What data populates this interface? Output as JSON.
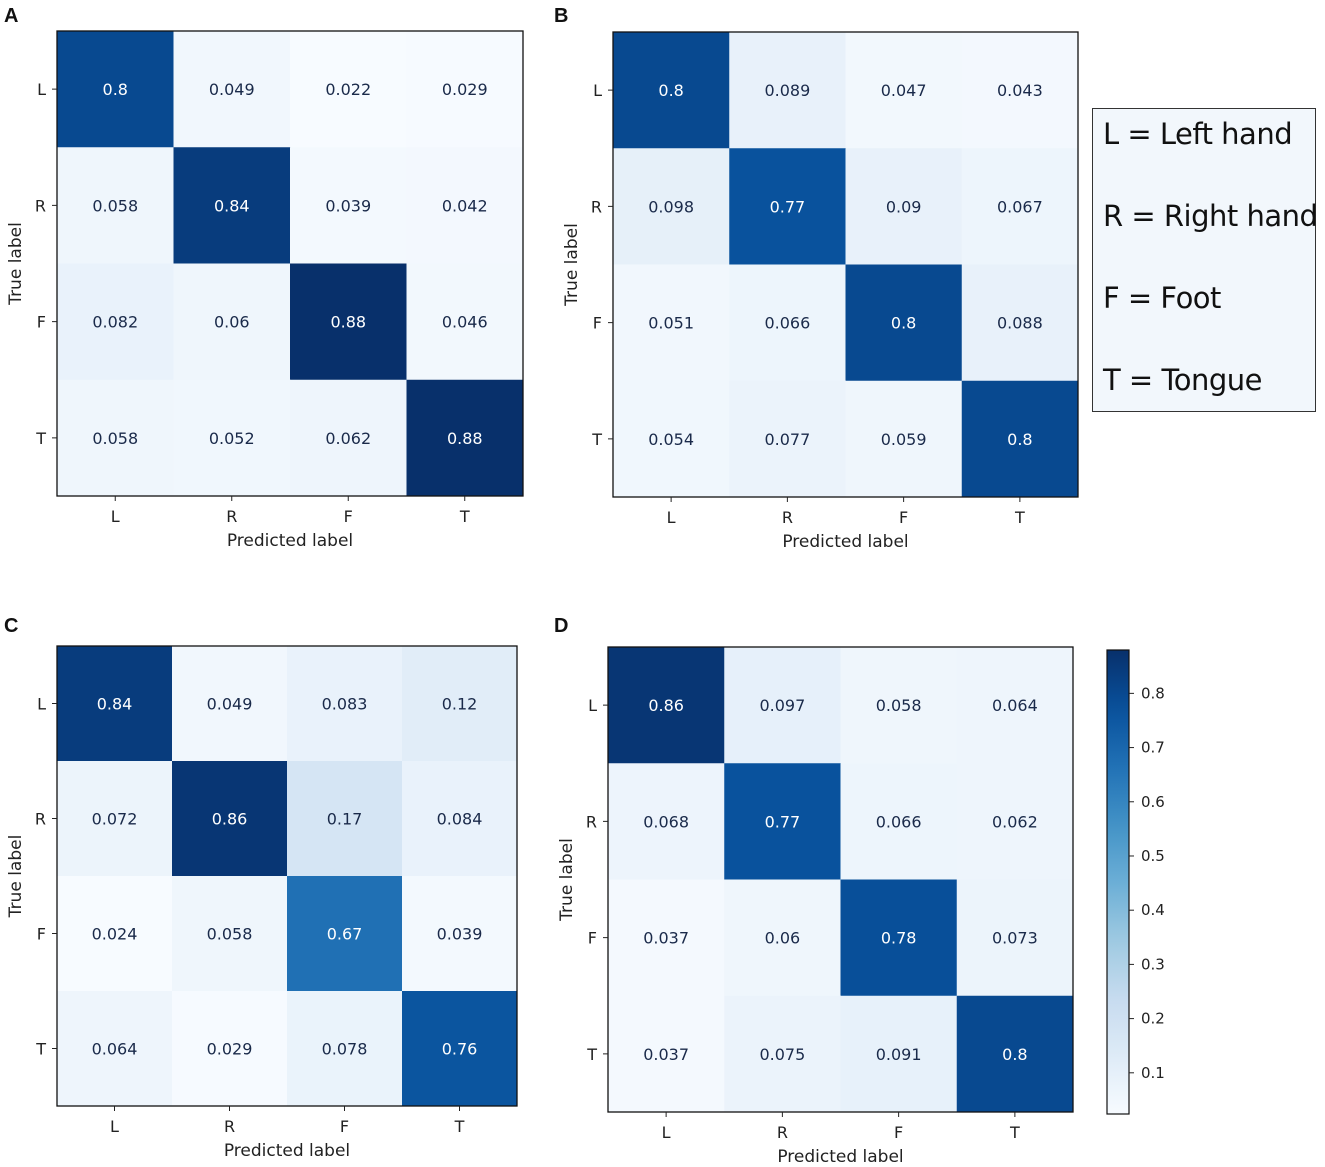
{
  "legend": {
    "entries": [
      "L = Left hand",
      "R = Right hand",
      "F = Foot",
      "T = Tongue"
    ]
  },
  "colorbar": {
    "ticks": [
      "0.1",
      "0.2",
      "0.3",
      "0.4",
      "0.5",
      "0.6",
      "0.7",
      "0.8"
    ],
    "range": [
      0.024,
      0.88
    ],
    "colormap": "Blues"
  },
  "chart_data": [
    {
      "type": "heatmap",
      "panel": "A",
      "xlabel": "Predicted label",
      "ylabel": "True label",
      "x_categories": [
        "L",
        "R",
        "F",
        "T"
      ],
      "y_categories": [
        "L",
        "R",
        "F",
        "T"
      ],
      "values": [
        [
          0.8,
          0.049,
          0.022,
          0.029
        ],
        [
          0.058,
          0.84,
          0.039,
          0.042
        ],
        [
          0.082,
          0.06,
          0.88,
          0.046
        ],
        [
          0.058,
          0.052,
          0.062,
          0.88
        ]
      ],
      "labels": [
        [
          "0.8",
          "0.049",
          "0.022",
          "0.029"
        ],
        [
          "0.058",
          "0.84",
          "0.039",
          "0.042"
        ],
        [
          "0.082",
          "0.06",
          "0.88",
          "0.046"
        ],
        [
          "0.058",
          "0.052",
          "0.062",
          "0.88"
        ]
      ]
    },
    {
      "type": "heatmap",
      "panel": "B",
      "xlabel": "Predicted label",
      "ylabel": "True label",
      "x_categories": [
        "L",
        "R",
        "F",
        "T"
      ],
      "y_categories": [
        "L",
        "R",
        "F",
        "T"
      ],
      "values": [
        [
          0.8,
          0.089,
          0.047,
          0.043
        ],
        [
          0.098,
          0.77,
          0.09,
          0.067
        ],
        [
          0.051,
          0.066,
          0.8,
          0.088
        ],
        [
          0.054,
          0.077,
          0.059,
          0.8
        ]
      ],
      "labels": [
        [
          "0.8",
          "0.089",
          "0.047",
          "0.043"
        ],
        [
          "0.098",
          "0.77",
          "0.09",
          "0.067"
        ],
        [
          "0.051",
          "0.066",
          "0.8",
          "0.088"
        ],
        [
          "0.054",
          "0.077",
          "0.059",
          "0.8"
        ]
      ]
    },
    {
      "type": "heatmap",
      "panel": "C",
      "xlabel": "Predicted label",
      "ylabel": "True label",
      "x_categories": [
        "L",
        "R",
        "F",
        "T"
      ],
      "y_categories": [
        "L",
        "R",
        "F",
        "T"
      ],
      "values": [
        [
          0.84,
          0.049,
          0.083,
          0.12
        ],
        [
          0.072,
          0.86,
          0.17,
          0.084
        ],
        [
          0.024,
          0.058,
          0.67,
          0.039
        ],
        [
          0.064,
          0.029,
          0.078,
          0.76
        ]
      ],
      "labels": [
        [
          "0.84",
          "0.049",
          "0.083",
          "0.12"
        ],
        [
          "0.072",
          "0.86",
          "0.17",
          "0.084"
        ],
        [
          "0.024",
          "0.058",
          "0.67",
          "0.039"
        ],
        [
          "0.064",
          "0.029",
          "0.078",
          "0.76"
        ]
      ]
    },
    {
      "type": "heatmap",
      "panel": "D",
      "xlabel": "Predicted label",
      "ylabel": "True label",
      "x_categories": [
        "L",
        "R",
        "F",
        "T"
      ],
      "y_categories": [
        "L",
        "R",
        "F",
        "T"
      ],
      "values": [
        [
          0.86,
          0.097,
          0.058,
          0.064
        ],
        [
          0.068,
          0.77,
          0.066,
          0.062
        ],
        [
          0.037,
          0.06,
          0.78,
          0.073
        ],
        [
          0.037,
          0.075,
          0.091,
          0.8
        ]
      ],
      "labels": [
        [
          "0.86",
          "0.097",
          "0.058",
          "0.064"
        ],
        [
          "0.068",
          "0.77",
          "0.066",
          "0.062"
        ],
        [
          "0.037",
          "0.06",
          "0.78",
          "0.073"
        ],
        [
          "0.037",
          "0.075",
          "0.091",
          "0.8"
        ]
      ]
    }
  ]
}
